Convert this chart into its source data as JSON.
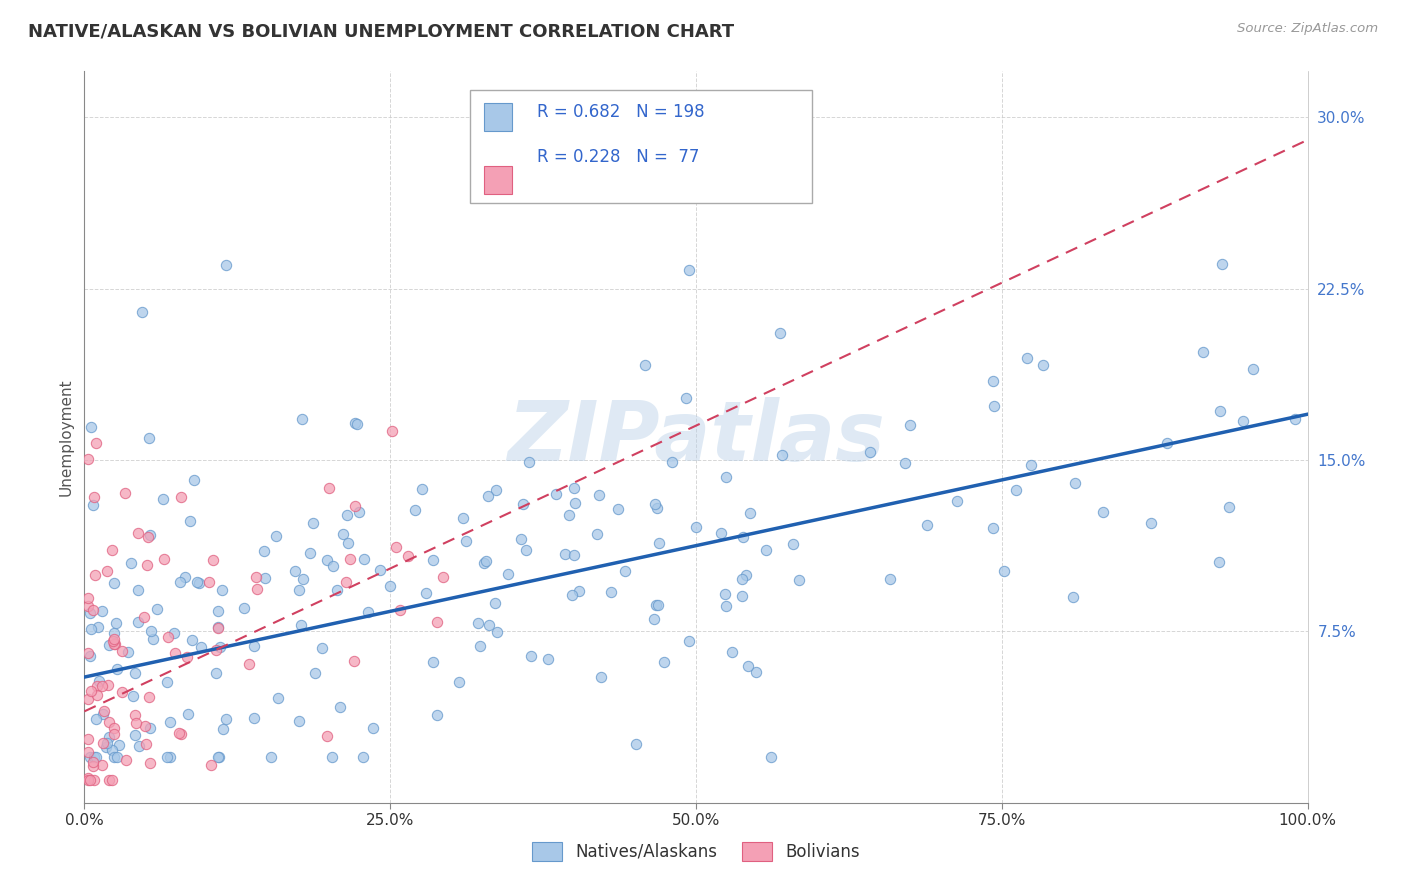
{
  "title": "NATIVE/ALASKAN VS BOLIVIAN UNEMPLOYMENT CORRELATION CHART",
  "source_text": "Source: ZipAtlas.com",
  "ylabel": "Unemployment",
  "xlim": [
    0,
    1.0
  ],
  "ylim": [
    0,
    0.32
  ],
  "xticks": [
    0.0,
    0.25,
    0.5,
    0.75,
    1.0
  ],
  "xtick_labels": [
    "0.0%",
    "25.0%",
    "50.0%",
    "75.0%",
    "100.0%"
  ],
  "yticks": [
    0.0,
    0.075,
    0.15,
    0.225,
    0.3
  ],
  "ytick_labels": [
    "",
    "7.5%",
    "15.0%",
    "22.5%",
    "30.0%"
  ],
  "blue_color": "#a8c8e8",
  "pink_color": "#f4a0b5",
  "blue_edge_color": "#6699cc",
  "pink_edge_color": "#e06080",
  "blue_line_color": "#2060b0",
  "pink_line_color": "#d04060",
  "r_blue": 0.682,
  "n_blue": 198,
  "r_pink": 0.228,
  "n_pink": 77,
  "legend_label_blue": "Natives/Alaskans",
  "legend_label_pink": "Bolivians",
  "watermark": "ZIPatlas",
  "background_color": "#ffffff",
  "plot_bg_color": "#ffffff",
  "grid_color": "#cccccc",
  "title_color": "#333333",
  "axis_label_color": "#555555",
  "tick_color": "#4477cc",
  "stat_text_color": "#3366cc",
  "box_edge_color": "#aaaaaa",
  "legend_box_color": "#f0f4ff",
  "blue_seed": 42,
  "pink_seed": 99
}
